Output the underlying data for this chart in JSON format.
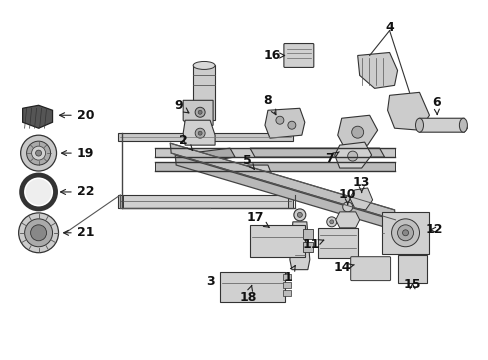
{
  "bg_color": "#ffffff",
  "fig_width": 4.89,
  "fig_height": 3.6,
  "dpi": 100,
  "label_fontsize": 8.5,
  "label_color": "#111111",
  "line_color": "#333333",
  "part_color": "#d8d8d8",
  "part_edge": "#333333"
}
